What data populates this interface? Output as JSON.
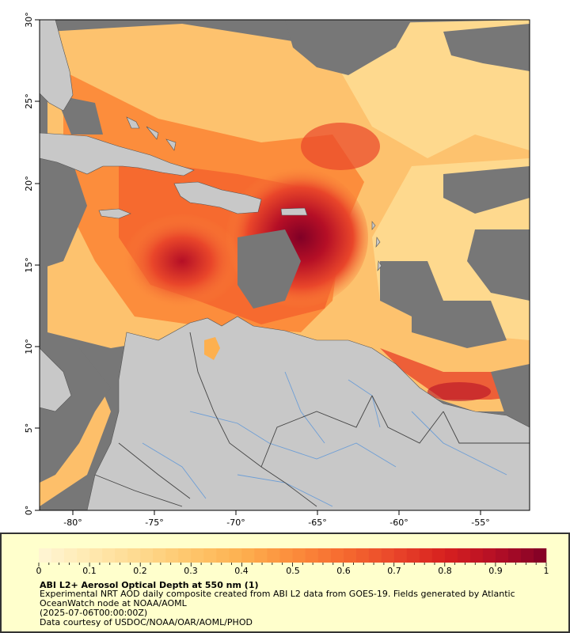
{
  "map": {
    "lat_labels": [
      "30°",
      "25°",
      "20°",
      "15°",
      "10°",
      "5°",
      "0°"
    ],
    "lon_labels": [
      "-80°",
      "-75°",
      "-70°",
      "-65°",
      "-60°",
      "-55°"
    ],
    "lon_range": [
      -82,
      -52
    ],
    "lat_range": [
      0,
      30
    ],
    "colors": {
      "no_data": "#777777",
      "land": "#c8c8c8",
      "rivers": "#6d9ed6",
      "borders": "#444444"
    }
  },
  "legend": {
    "ticks": [
      "0",
      "0.1",
      "0.2",
      "0.3",
      "0.4",
      "0.5",
      "0.6",
      "0.7",
      "0.8",
      "0.9",
      "1"
    ],
    "colormap": [
      "#fff5d6",
      "#ffe9b0",
      "#fed98e",
      "#fec66b",
      "#fdb04f",
      "#fc8d3c",
      "#f66a2f",
      "#e9462a",
      "#d7201f",
      "#b50f26",
      "#800026"
    ],
    "title": "ABI L2+ Aerosol Optical Depth at 550 nm (1)",
    "line1": "Experimental NRT AOD daily composite created from ABI L2 data from GOES-19. Fields generated by Atlantic",
    "line2": "OceanWatch node at NOAA/AOML",
    "line3": "(2025-07-06T00:00:00Z)",
    "line4": "Data courtesy of USDOC/NOAA/OAR/AOML/PHOD"
  }
}
